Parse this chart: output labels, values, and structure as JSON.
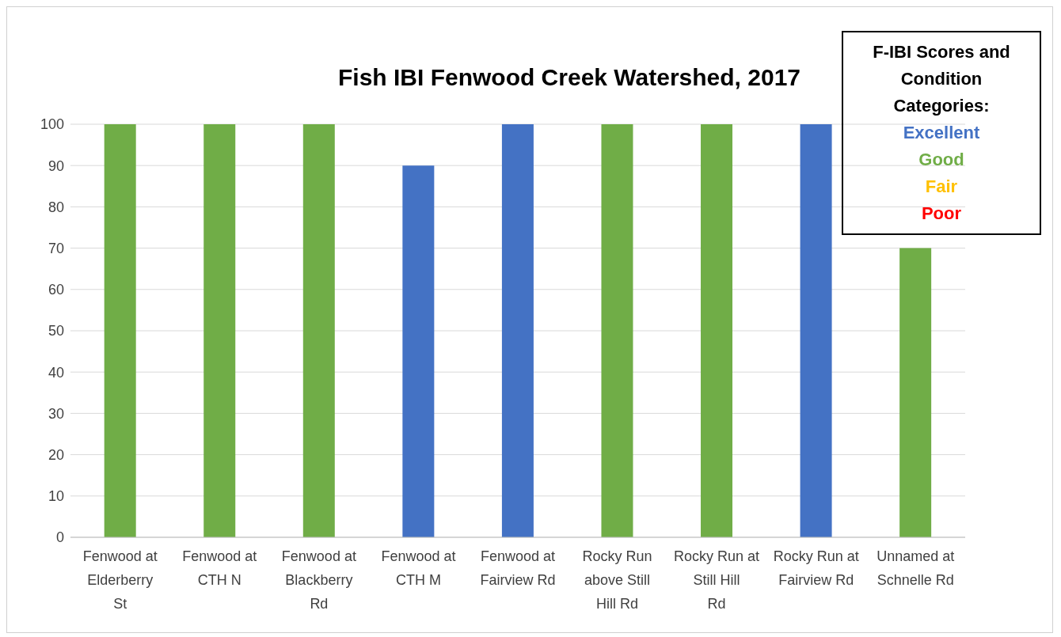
{
  "chart_data": {
    "type": "bar",
    "title": "Fish IBI Fenwood Creek Watershed, 2017",
    "legend_title": "F-IBI Scores and Condition Categories:",
    "categories": [
      "Fenwood at Elderberry St",
      "Fenwood at CTH N",
      "Fenwood at Blackberry Rd",
      "Fenwood at CTH M",
      "Fenwood at Fairview Rd",
      "Rocky Run above Still Hill Rd",
      "Rocky Run at Still Hill Rd",
      "Rocky Run at Fairview Rd",
      "Unnamed at Schnelle Rd"
    ],
    "series": [
      {
        "name": "Excellent",
        "color": "#4472c4",
        "values": [
          null,
          null,
          null,
          90,
          100,
          null,
          null,
          100,
          null
        ]
      },
      {
        "name": "Good",
        "color": "#70ad47",
        "values": [
          100,
          100,
          100,
          null,
          null,
          100,
          100,
          null,
          70
        ]
      },
      {
        "name": "Fair",
        "color": "#ffc000",
        "values": [
          null,
          null,
          null,
          null,
          null,
          null,
          null,
          null,
          null
        ]
      },
      {
        "name": "Poor",
        "color": "#ff0000",
        "values": [
          null,
          null,
          null,
          null,
          null,
          null,
          null,
          null,
          null
        ]
      }
    ],
    "stacked": true,
    "ylim": [
      0,
      100
    ],
    "yticks": [
      0,
      10,
      20,
      30,
      40,
      50,
      60,
      70,
      80,
      90,
      100
    ],
    "grid": "y",
    "legend": "top right"
  }
}
